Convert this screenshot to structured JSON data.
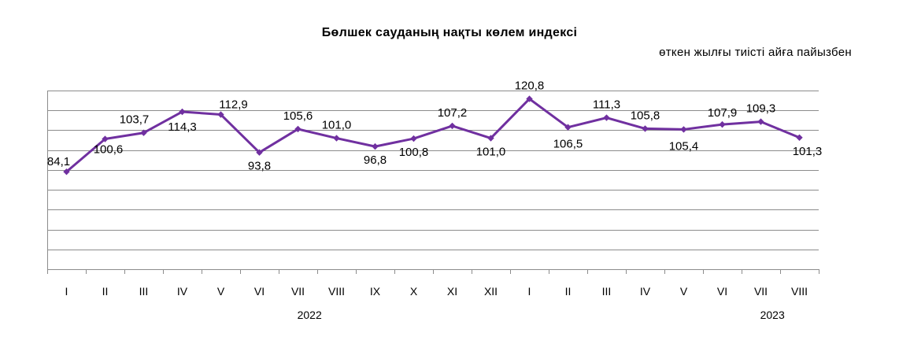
{
  "chart_data": {
    "type": "line",
    "title": "Бөлшек сауданың нақты көлем индексі",
    "subtitle": "өткен жылғы тиісті айға пайызбен",
    "categories": [
      "I",
      "II",
      "III",
      "IV",
      "V",
      "VI",
      "VII",
      "VIII",
      "IX",
      "X",
      "XI",
      "XII",
      "I",
      "II",
      "III",
      "IV",
      "V",
      "VI",
      "VII",
      "VIII"
    ],
    "year_groups": [
      {
        "label": "2022",
        "months": 12
      },
      {
        "label": "2023",
        "months": 8
      }
    ],
    "series": [
      {
        "values": [
          84.1,
          100.6,
          103.7,
          114.3,
          112.9,
          93.8,
          105.6,
          101.0,
          96.8,
          100.8,
          107.2,
          101.0,
          120.8,
          106.5,
          111.3,
          105.8,
          105.4,
          107.9,
          109.3,
          101.3
        ],
        "labels": [
          "84,1",
          "100,6",
          "103,7",
          "114,3",
          "112,9",
          "93,8",
          "105,6",
          "101,0",
          "96,8",
          "100,8",
          "107,2",
          "101,0",
          "120,8",
          "106,5",
          "111,3",
          "105,8",
          "105,4",
          "107,9",
          "109,3",
          "101,3"
        ],
        "color": "#7030a0"
      }
    ],
    "ylim": [
      35,
      125
    ],
    "grid": true,
    "y_tick_labels_visible": false,
    "legend": "none",
    "xlabel": "",
    "ylabel": ""
  }
}
